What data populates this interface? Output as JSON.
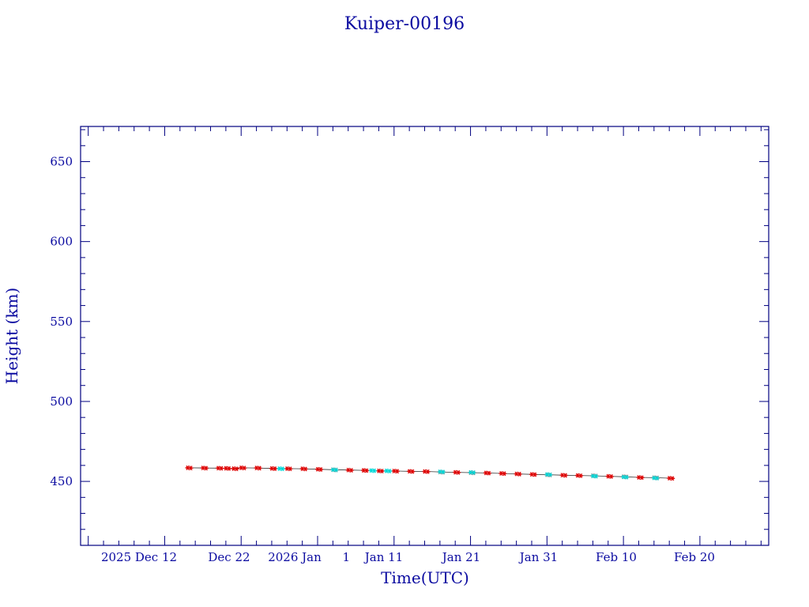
{
  "chart_data": {
    "type": "scatter",
    "title": "Kuiper-00196",
    "xlabel": "Time(UTC)",
    "ylabel": "Height (km)",
    "xlim": [
      "2025-12-01",
      "2026-03-01"
    ],
    "ylim": [
      410,
      672
    ],
    "x_tick_labels": [
      "2025 Dec 12",
      "Dec 22",
      "2026 Jan",
      "1",
      "Jan 11",
      "Jan 21",
      "Jan 31",
      "Feb 10",
      "Feb 20"
    ],
    "y_tick_labels": [
      "450",
      "500",
      "550",
      "600",
      "650"
    ],
    "y_ticks": [
      450,
      500,
      550,
      600,
      650
    ],
    "grid": false,
    "colors": {
      "axis": "#000080",
      "text": "#0a0aa0",
      "series_main": "#dd0000",
      "series_alt": "#00d8d8"
    },
    "series": [
      {
        "marker": "star",
        "color": "#dd0000",
        "points": [
          [
            "2025-12-15",
            458.5
          ],
          [
            "2025-12-17",
            458.4
          ],
          [
            "2025-12-19",
            458.3
          ],
          [
            "2025-12-20",
            458.2
          ],
          [
            "2025-12-21",
            458.0
          ],
          [
            "2025-12-22",
            458.5
          ],
          [
            "2025-12-24",
            458.4
          ],
          [
            "2025-12-26",
            458.1
          ],
          [
            "2025-12-28",
            458.0
          ],
          [
            "2025-12-30",
            457.9
          ],
          [
            "2026-01-01",
            457.6
          ],
          [
            "2026-01-03",
            457.3
          ],
          [
            "2026-01-05",
            457.1
          ],
          [
            "2026-01-07",
            456.9
          ],
          [
            "2026-01-09",
            456.6
          ],
          [
            "2026-01-11",
            456.5
          ],
          [
            "2026-01-13",
            456.3
          ],
          [
            "2026-01-15",
            456.2
          ],
          [
            "2026-01-17",
            455.9
          ],
          [
            "2026-01-19",
            455.7
          ],
          [
            "2026-01-21",
            455.5
          ],
          [
            "2026-01-23",
            455.3
          ],
          [
            "2026-01-25",
            455.0
          ],
          [
            "2026-01-27",
            454.7
          ],
          [
            "2026-01-29",
            454.4
          ],
          [
            "2026-01-31",
            454.2
          ],
          [
            "2026-02-02",
            453.9
          ],
          [
            "2026-02-04",
            453.7
          ],
          [
            "2026-02-06",
            453.5
          ],
          [
            "2026-02-08",
            453.2
          ],
          [
            "2026-02-10",
            452.9
          ],
          [
            "2026-02-12",
            452.5
          ],
          [
            "2026-02-14",
            452.3
          ],
          [
            "2026-02-16",
            452.0
          ]
        ]
      },
      {
        "marker": "star",
        "color": "#00d8d8",
        "points": [
          [
            "2025-12-27",
            458.0
          ],
          [
            "2026-01-03",
            457.3
          ],
          [
            "2026-01-08",
            456.8
          ],
          [
            "2026-01-10",
            456.6
          ],
          [
            "2026-01-17",
            456.0
          ],
          [
            "2026-01-21",
            455.6
          ],
          [
            "2026-01-31",
            454.3
          ],
          [
            "2026-02-06",
            453.4
          ],
          [
            "2026-02-10",
            452.8
          ],
          [
            "2026-02-14",
            452.2
          ]
        ]
      }
    ]
  }
}
